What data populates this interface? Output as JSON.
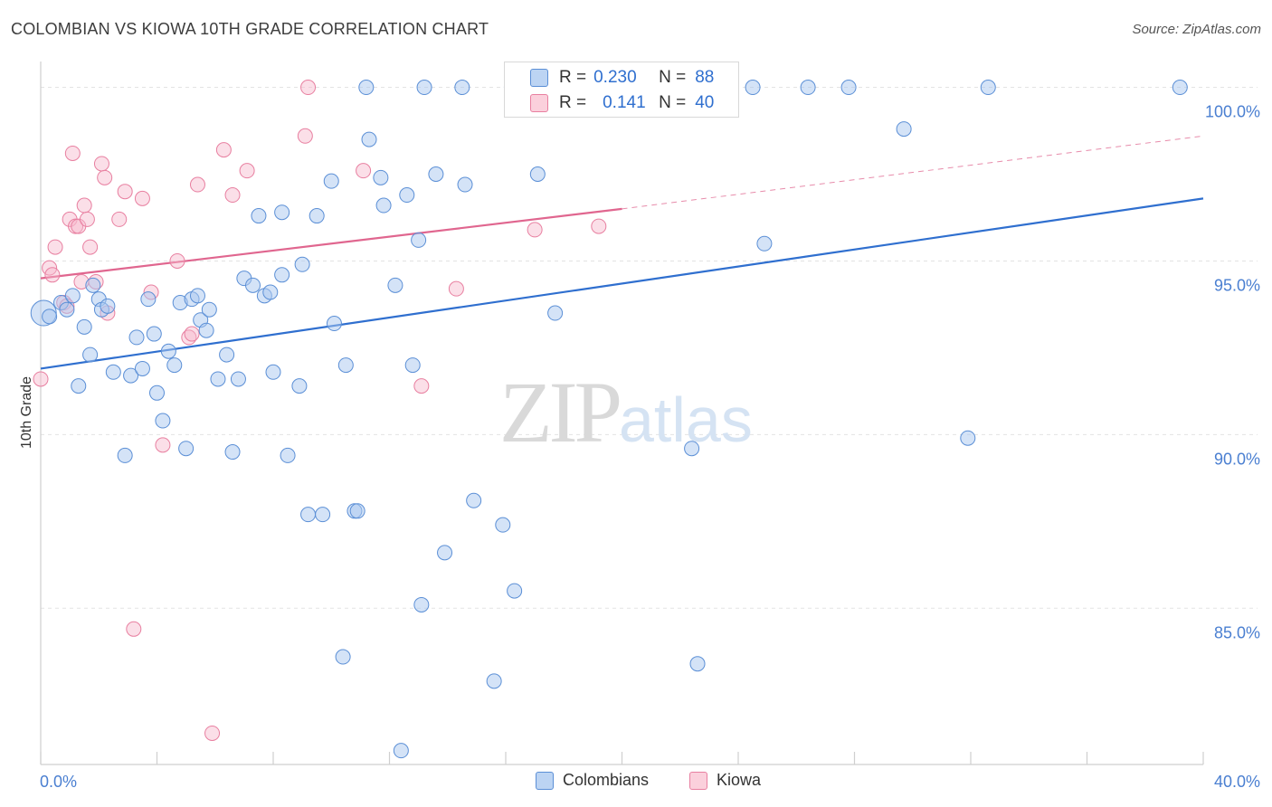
{
  "title": "COLOMBIAN VS KIOWA 10TH GRADE CORRELATION CHART",
  "source": "Source: ZipAtlas.com",
  "watermark": {
    "zip": "ZIP",
    "atlas": "atlas"
  },
  "legend_top": {
    "rows": [
      {
        "r_label": "R =",
        "r_value": "0.230",
        "n_label": "N =",
        "n_value": "88"
      },
      {
        "r_label": "R =",
        "r_value": "0.141",
        "n_label": "N =",
        "n_value": "40"
      }
    ]
  },
  "legend_bottom": {
    "items": [
      {
        "label": "Colombians"
      },
      {
        "label": "Kiowa"
      }
    ]
  },
  "colors": {
    "blue_fill": "#a9c8f0",
    "blue_stroke": "#5b8fd6",
    "blue_line": "#2f6fcf",
    "pink_fill": "#f7b8cb",
    "pink_stroke": "#e87fa0",
    "pink_line": "#e0668f",
    "grid": "#e3e3e3",
    "tick_text": "#4a7fd1"
  },
  "chart_data": {
    "type": "scatter",
    "title": "COLOMBIAN VS KIOWA 10TH GRADE CORRELATION CHART",
    "xlabel": "",
    "ylabel": "10th Grade",
    "xlim": [
      0,
      40
    ],
    "ylim": [
      80.5,
      100.9
    ],
    "x_tick_labels": [
      "0.0%",
      "40.0%"
    ],
    "y_ticks": [
      85,
      90,
      95,
      100
    ],
    "y_tick_labels": [
      "85.0%",
      "90.0%",
      "95.0%",
      "100.0%"
    ],
    "grid": true,
    "series": [
      {
        "name": "Colombians",
        "color": "#a9c8f0",
        "r": 0.23,
        "n": 88,
        "trend": {
          "x0": 0,
          "y0": 91.9,
          "x1": 40,
          "y1": 96.8
        },
        "points": [
          [
            0.1,
            93.5
          ],
          [
            0.3,
            93.4
          ],
          [
            0.7,
            93.8
          ],
          [
            0.9,
            93.6
          ],
          [
            1.1,
            94.0
          ],
          [
            1.3,
            91.4
          ],
          [
            1.5,
            93.1
          ],
          [
            1.7,
            92.3
          ],
          [
            1.8,
            94.3
          ],
          [
            2.0,
            93.9
          ],
          [
            2.1,
            93.6
          ],
          [
            2.3,
            93.7
          ],
          [
            2.5,
            91.8
          ],
          [
            2.9,
            89.4
          ],
          [
            3.1,
            91.7
          ],
          [
            3.3,
            92.8
          ],
          [
            3.5,
            91.9
          ],
          [
            3.7,
            93.9
          ],
          [
            3.9,
            92.9
          ],
          [
            4.0,
            91.2
          ],
          [
            4.2,
            90.4
          ],
          [
            4.4,
            92.4
          ],
          [
            4.6,
            92.0
          ],
          [
            4.8,
            93.8
          ],
          [
            5.0,
            89.6
          ],
          [
            5.2,
            93.9
          ],
          [
            5.4,
            94.0
          ],
          [
            5.5,
            93.3
          ],
          [
            5.7,
            93.0
          ],
          [
            5.8,
            93.6
          ],
          [
            6.1,
            91.6
          ],
          [
            6.4,
            92.3
          ],
          [
            6.6,
            89.5
          ],
          [
            6.8,
            91.6
          ],
          [
            7.0,
            94.5
          ],
          [
            7.3,
            94.3
          ],
          [
            7.5,
            96.3
          ],
          [
            7.7,
            94.0
          ],
          [
            7.9,
            94.1
          ],
          [
            8.0,
            91.8
          ],
          [
            8.3,
            94.6
          ],
          [
            8.5,
            89.4
          ],
          [
            8.3,
            96.4
          ],
          [
            8.9,
            91.4
          ],
          [
            9.0,
            94.9
          ],
          [
            9.2,
            87.7
          ],
          [
            9.5,
            96.3
          ],
          [
            9.7,
            87.7
          ],
          [
            10.0,
            97.3
          ],
          [
            10.1,
            93.2
          ],
          [
            10.4,
            83.6
          ],
          [
            10.5,
            92.0
          ],
          [
            10.8,
            87.8
          ],
          [
            10.9,
            87.8
          ],
          [
            11.2,
            100.0
          ],
          [
            11.3,
            98.5
          ],
          [
            11.7,
            97.4
          ],
          [
            11.8,
            96.6
          ],
          [
            12.2,
            94.3
          ],
          [
            12.4,
            80.9
          ],
          [
            12.6,
            96.9
          ],
          [
            12.8,
            92.0
          ],
          [
            13.0,
            95.6
          ],
          [
            13.1,
            85.1
          ],
          [
            13.2,
            100.0
          ],
          [
            13.6,
            97.5
          ],
          [
            13.9,
            86.6
          ],
          [
            14.5,
            100.0
          ],
          [
            14.6,
            97.2
          ],
          [
            14.9,
            88.1
          ],
          [
            15.6,
            82.9
          ],
          [
            15.9,
            87.4
          ],
          [
            16.2,
            100.0
          ],
          [
            16.3,
            85.5
          ],
          [
            17.1,
            97.5
          ],
          [
            17.7,
            93.5
          ],
          [
            20.0,
            100.0
          ],
          [
            20.5,
            100.0
          ],
          [
            22.4,
            89.6
          ],
          [
            22.6,
            83.4
          ],
          [
            24.5,
            100.0
          ],
          [
            24.9,
            95.5
          ],
          [
            26.4,
            100.0
          ],
          [
            27.8,
            100.0
          ],
          [
            29.7,
            98.8
          ],
          [
            31.9,
            89.9
          ],
          [
            32.6,
            100.0
          ],
          [
            39.2,
            100.0
          ]
        ]
      },
      {
        "name": "Kiowa",
        "color": "#f7b8cb",
        "r": 0.141,
        "n": 40,
        "trend": {
          "x0": 0,
          "y0": 94.5,
          "x1": 20,
          "y1": 96.5,
          "dashed_to": {
            "x": 40,
            "y": 98.6
          }
        },
        "points": [
          [
            0.0,
            91.6
          ],
          [
            0.3,
            94.8
          ],
          [
            0.4,
            94.6
          ],
          [
            0.5,
            95.4
          ],
          [
            0.8,
            93.8
          ],
          [
            0.9,
            93.7
          ],
          [
            1.0,
            96.2
          ],
          [
            1.1,
            98.1
          ],
          [
            1.2,
            96.0
          ],
          [
            1.3,
            96.0
          ],
          [
            1.4,
            94.4
          ],
          [
            1.5,
            96.6
          ],
          [
            1.6,
            96.2
          ],
          [
            1.7,
            95.4
          ],
          [
            1.9,
            94.4
          ],
          [
            2.1,
            97.8
          ],
          [
            2.2,
            97.4
          ],
          [
            2.3,
            93.5
          ],
          [
            2.7,
            96.2
          ],
          [
            2.9,
            97.0
          ],
          [
            3.2,
            84.4
          ],
          [
            3.5,
            96.8
          ],
          [
            3.8,
            94.1
          ],
          [
            4.2,
            89.7
          ],
          [
            4.7,
            95.0
          ],
          [
            5.1,
            92.8
          ],
          [
            5.2,
            92.9
          ],
          [
            5.4,
            97.2
          ],
          [
            5.9,
            81.4
          ],
          [
            6.3,
            98.2
          ],
          [
            6.6,
            96.9
          ],
          [
            7.1,
            97.6
          ],
          [
            9.1,
            98.6
          ],
          [
            9.2,
            100.0
          ],
          [
            11.1,
            97.6
          ],
          [
            13.1,
            91.4
          ],
          [
            14.3,
            94.2
          ],
          [
            16.5,
            100.0
          ],
          [
            17.0,
            95.9
          ],
          [
            19.2,
            96.0
          ]
        ]
      }
    ]
  }
}
